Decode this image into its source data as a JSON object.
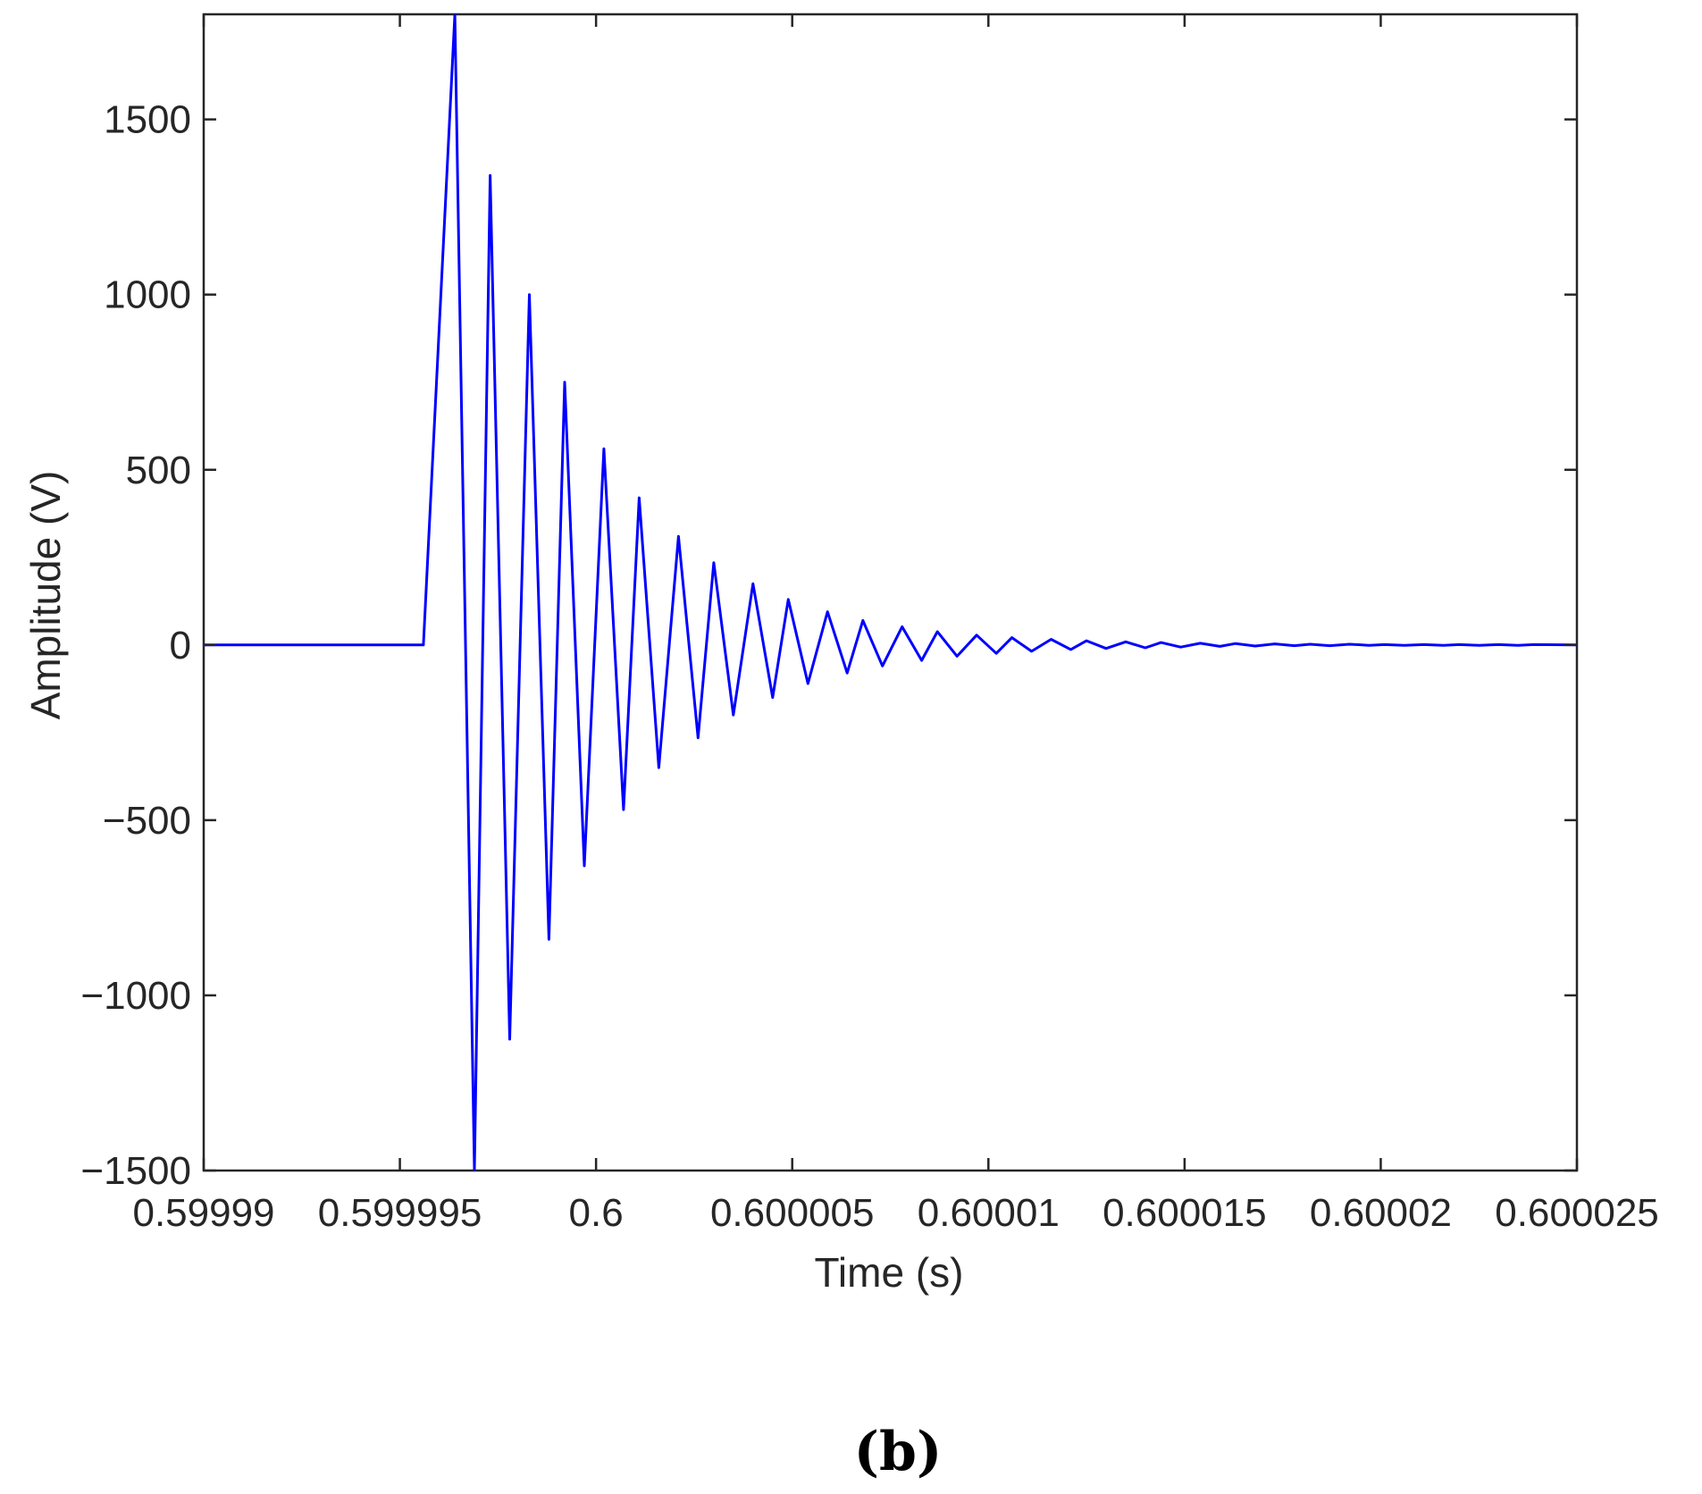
{
  "chart_data": {
    "type": "line",
    "title": "",
    "xlabel": "Time (s)",
    "ylabel": "Amplitude (V)",
    "xlim": [
      0.59999,
      0.600025
    ],
    "ylim": [
      -1500,
      1800
    ],
    "x_ticks": [
      0.59999,
      0.599995,
      0.6,
      0.600005,
      0.60001,
      0.600015,
      0.60002,
      0.600025
    ],
    "x_tick_labels": [
      "0.59999",
      "0.599995",
      "0.6",
      "0.600005",
      "0.60001",
      "0.600015",
      "0.60002",
      "0.600025"
    ],
    "y_ticks": [
      -1500,
      -1000,
      -500,
      0,
      500,
      1000,
      1500
    ],
    "y_tick_labels": [
      "−1500",
      "−1000",
      "−500",
      "0",
      "500",
      "1000",
      "1500"
    ],
    "grid": false,
    "legend": "none",
    "line_color": "#0000ff",
    "series": [
      {
        "peaks_x": [
          0.5999964,
          0.5999973,
          0.5999983,
          0.5999992,
          0.6000002,
          0.6000011,
          0.6000021,
          0.600003,
          0.600004,
          0.6000049,
          0.6000059,
          0.6000068,
          0.6000078,
          0.6000087,
          0.6000097,
          0.6000106,
          0.6000116,
          0.6000125,
          0.6000135,
          0.6000144,
          0.6000154,
          0.6000163,
          0.6000173,
          0.6000182,
          0.6000192,
          0.6000201,
          0.6000211,
          0.600022,
          0.600023,
          0.6000239
        ],
        "peaks_y": [
          1800,
          1340,
          1000,
          750,
          560,
          420,
          310,
          235,
          175,
          130,
          95,
          70,
          52,
          38,
          28,
          21,
          16,
          12,
          9,
          7,
          5,
          4,
          3,
          2,
          2,
          1,
          1,
          1,
          1,
          1
        ],
        "troughs_x": [
          0.5999969,
          0.5999978,
          0.5999988,
          0.5999997,
          0.6000007,
          0.6000016,
          0.6000026,
          0.6000035,
          0.6000045,
          0.6000054,
          0.6000064,
          0.6000073,
          0.6000083,
          0.6000092,
          0.6000102,
          0.6000111,
          0.6000121,
          0.600013,
          0.600014,
          0.6000149,
          0.6000159,
          0.6000168,
          0.6000178,
          0.6000187,
          0.6000197,
          0.6000206,
          0.6000216,
          0.6000225,
          0.6000235
        ],
        "troughs_y": [
          -1500,
          -1125,
          -840,
          -630,
          -470,
          -350,
          -265,
          -200,
          -150,
          -110,
          -80,
          -60,
          -44,
          -32,
          -24,
          -18,
          -13,
          -10,
          -8,
          -6,
          -4,
          -3,
          -2,
          -2,
          -1,
          -1,
          -1,
          -1,
          -1
        ],
        "baseline_until": 0.5999956
      }
    ]
  },
  "panel_label": "(b)"
}
